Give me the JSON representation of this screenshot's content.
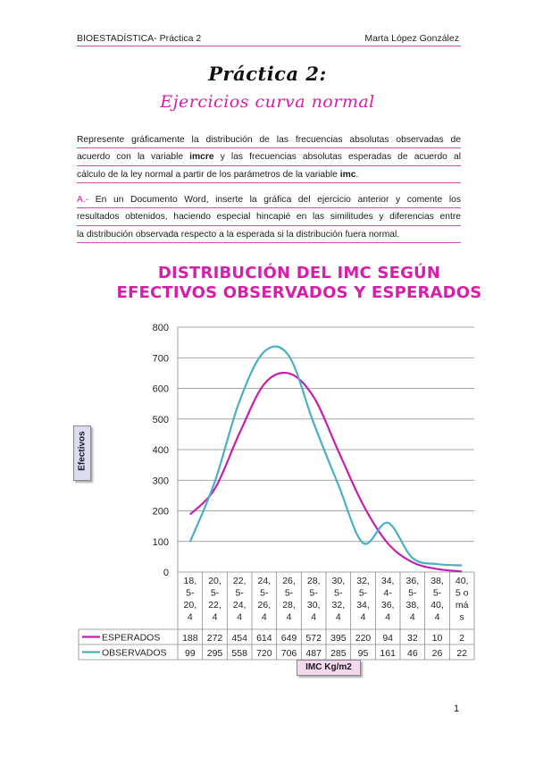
{
  "header": {
    "left": "BIOESTADÍSTICA- Práctica 2",
    "right": "Marta López González"
  },
  "title": "Práctica 2:",
  "subtitle": "Ejercicios curva normal",
  "intro": {
    "lines": [
      "Represente gráficamente la distribución de las frecuencias absolutas observadas de",
      [
        "acuerdo con la variable ",
        "imcre",
        " y las frecuencias absolutas esperadas de acuerdo al"
      ],
      [
        "cálculo de la ley normal a partir de los parámetros de la variable ",
        "imc",
        "."
      ]
    ]
  },
  "task": {
    "label": "A.-",
    "lines": [
      " En un Documento Word, inserte la gráfica del ejercicio anterior y comente los",
      "resultados obtenidos, haciendo especial hincapié en las similitudes y diferencias entre",
      "la distribución observada respecto a la esperada si la distribución fuera normal."
    ]
  },
  "page_number": "1",
  "colors": {
    "accent": "#d61ea8",
    "esperados": "#c51fb0",
    "observados": "#4aaec4",
    "rule": "#d04bb3"
  },
  "chart_data": {
    "type": "line",
    "title_lines": [
      "DISTRIBUCIÓN DEL IMC SEGÚN",
      "EFECTIVOS OBSERVADOS Y ESPERADOS"
    ],
    "ylabel": "Efectivos",
    "xlabel": "IMC Kg/m2",
    "ylim": [
      0,
      800
    ],
    "yticks": [
      0,
      100,
      200,
      300,
      400,
      500,
      600,
      700,
      800
    ],
    "grid": true,
    "legend": "data-table",
    "categories": [
      [
        "18,",
        "5-",
        "20,",
        "4"
      ],
      [
        "20,",
        "5-",
        "22,",
        "4"
      ],
      [
        "22,",
        "5-",
        "24,",
        "4"
      ],
      [
        "24,",
        "5-",
        "26,",
        "4"
      ],
      [
        "26,",
        "5-",
        "28,",
        "4"
      ],
      [
        "28,",
        "5-",
        "30,",
        "4"
      ],
      [
        "30,",
        "5-",
        "32,",
        "4"
      ],
      [
        "32,",
        "5-",
        "34,",
        "4"
      ],
      [
        "34,",
        "4-",
        "36,",
        "4"
      ],
      [
        "36,",
        "5-",
        "38,",
        "4"
      ],
      [
        "38,",
        "5-",
        "40,",
        "4"
      ],
      [
        "40,",
        "5 o",
        "má",
        "s"
      ]
    ],
    "series": [
      {
        "name": "ESPERADOS",
        "values": [
          188,
          272,
          454,
          614,
          649,
          572,
          395,
          220,
          94,
          32,
          10,
          2
        ]
      },
      {
        "name": "OBSERVADOS",
        "values": [
          99,
          295,
          558,
          720,
          706,
          487,
          285,
          95,
          161,
          46,
          26,
          22
        ]
      }
    ]
  }
}
